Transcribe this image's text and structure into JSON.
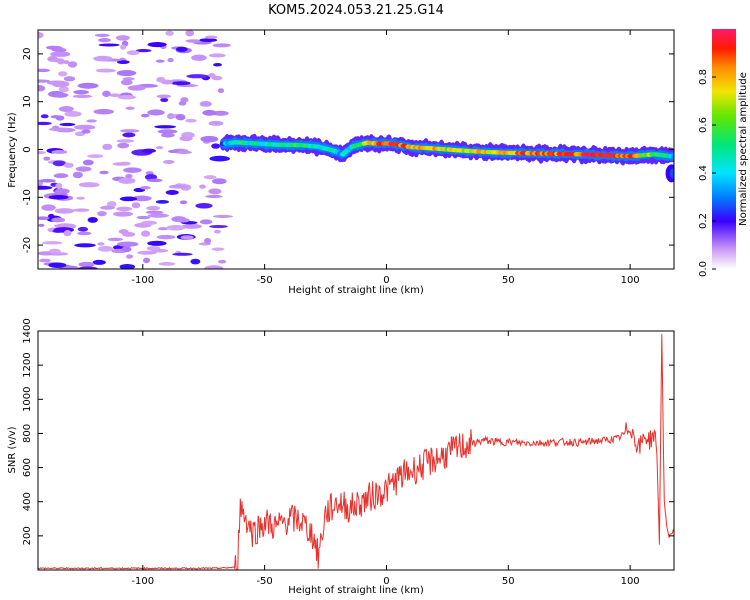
{
  "title": "KOM5.2024.053.21.25.G14",
  "colors": {
    "snr_line": "#e8312c",
    "spectrogram_cmap": [
      "#ffffff",
      "#d8b8f0",
      "#7a2ed6",
      "#1a1aff",
      "#00c8ff",
      "#00e676",
      "#f2e600",
      "#ff2a00",
      "#ff1b6b"
    ]
  },
  "chart_data": [
    {
      "type": "heatmap",
      "name": "spectrogram",
      "xlabel": "Height of straight line (km)",
      "ylabel": "Frequency (Hz)",
      "xlim": [
        -143,
        118
      ],
      "ylim": [
        -25,
        25
      ],
      "xticks": [
        -100,
        -50,
        0,
        50,
        100
      ],
      "xtick_labels": [
        "-100",
        "-50",
        "0",
        "50",
        "100"
      ],
      "yticks": [
        -20,
        -10,
        0,
        10,
        20
      ],
      "ytick_labels": [
        "-20",
        "-10",
        "0",
        "10",
        "20"
      ],
      "noise_region_km": [
        -143,
        -67
      ],
      "signal_start_km": -67,
      "trace": {
        "x_km": [
          -67,
          -62,
          -55,
          -45,
          -35,
          -28,
          -22,
          -18,
          -14,
          -8,
          -3,
          0,
          5,
          10,
          20,
          30,
          40,
          50,
          60,
          70,
          80,
          90,
          95,
          100,
          105,
          110,
          115,
          118
        ],
        "freq_hz": [
          1.2,
          1.5,
          1.3,
          1.0,
          0.9,
          0.6,
          -0.2,
          -1.0,
          0.6,
          1.4,
          1.2,
          1.3,
          1.0,
          0.5,
          0.2,
          -0.2,
          -0.5,
          -0.7,
          -0.8,
          -0.9,
          -1.0,
          -1.2,
          -1.3,
          -1.4,
          -1.2,
          -1.0,
          -1.3,
          -1.5
        ],
        "amplitude": [
          0.3,
          0.55,
          0.45,
          0.5,
          0.55,
          0.5,
          0.4,
          0.35,
          0.45,
          0.7,
          0.9,
          0.92,
          0.9,
          0.8,
          0.75,
          0.7,
          0.75,
          0.8,
          0.85,
          0.85,
          0.88,
          0.9,
          0.92,
          0.9,
          0.7,
          0.6,
          0.5,
          0.4
        ]
      },
      "colorbar": {
        "label": "Normalized spectral amplitude",
        "range": [
          0,
          1
        ],
        "ticks": [
          0.0,
          0.2,
          0.4,
          0.6,
          0.8
        ],
        "tick_labels": [
          "0.0",
          "0.2",
          "0.4",
          "0.6",
          "0.8"
        ]
      }
    },
    {
      "type": "line",
      "name": "snr",
      "xlabel": "Height of straight line (km)",
      "ylabel": "SNR (v/v)",
      "xlim": [
        -143,
        118
      ],
      "ylim": [
        0,
        1400
      ],
      "xticks": [
        -100,
        -50,
        0,
        50,
        100
      ],
      "xtick_labels": [
        "-100",
        "-50",
        "0",
        "50",
        "100"
      ],
      "yticks": [
        200,
        400,
        600,
        800,
        1000,
        1200,
        1400
      ],
      "ytick_labels": [
        "200",
        "400",
        "600",
        "800",
        "1000",
        "1200",
        "1400"
      ],
      "x": [
        -143,
        -130,
        -120,
        -110,
        -100,
        -90,
        -80,
        -70,
        -62,
        -61,
        -60,
        -55,
        -50,
        -45,
        -40,
        -35,
        -30,
        -28,
        -25,
        -20,
        -15,
        -10,
        -5,
        0,
        5,
        10,
        15,
        20,
        25,
        30,
        35,
        40,
        45,
        50,
        55,
        60,
        65,
        70,
        75,
        80,
        85,
        90,
        95,
        98,
        100,
        102,
        104,
        106,
        108,
        110,
        111,
        112,
        113,
        114,
        115,
        116,
        118
      ],
      "y": [
        10,
        10,
        10,
        10,
        10,
        10,
        10,
        10,
        15,
        70,
        380,
        220,
        280,
        250,
        300,
        290,
        200,
        80,
        330,
        400,
        360,
        400,
        440,
        470,
        540,
        580,
        610,
        650,
        680,
        720,
        740,
        760,
        750,
        750,
        745,
        745,
        745,
        750,
        750,
        745,
        755,
        760,
        770,
        800,
        850,
        760,
        720,
        790,
        760,
        800,
        680,
        150,
        1390,
        400,
        250,
        200,
        230
      ]
    }
  ]
}
